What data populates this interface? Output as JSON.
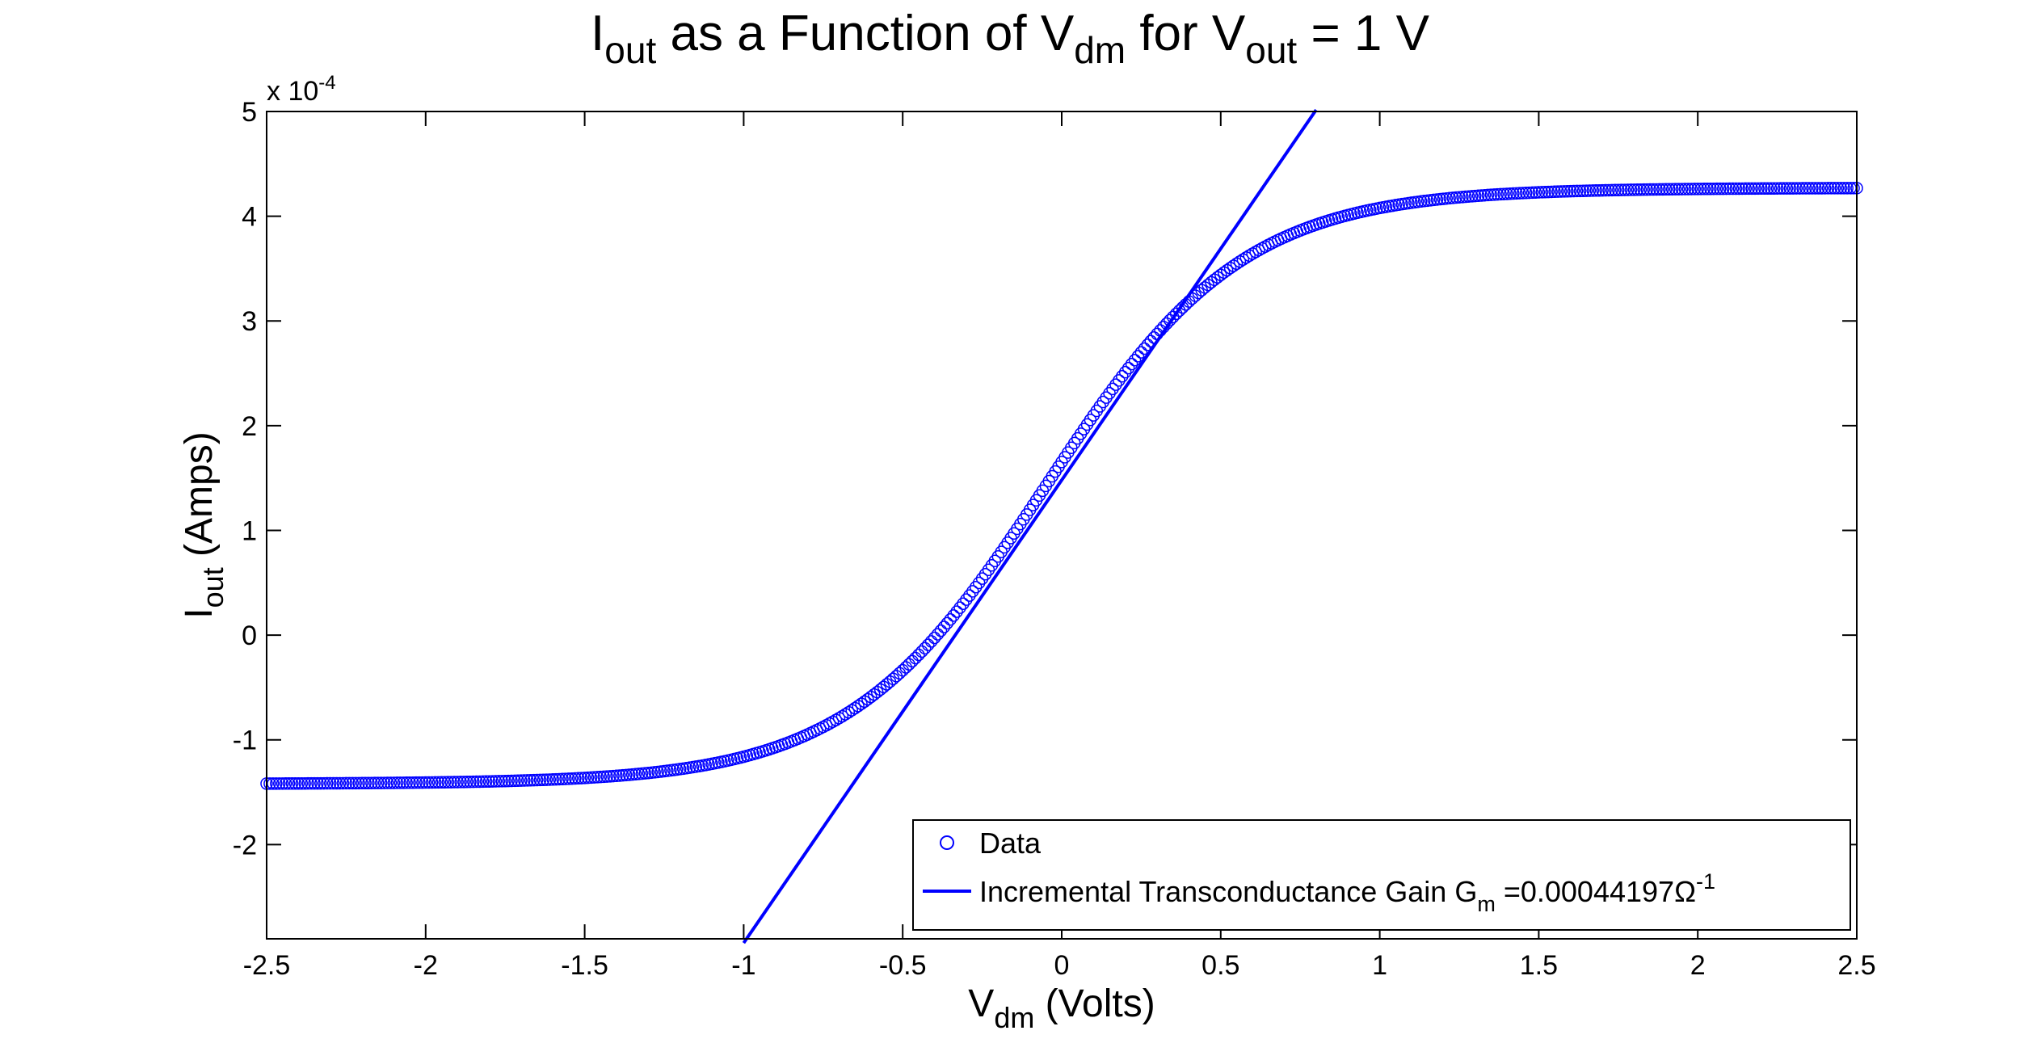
{
  "chart_data": {
    "type": "scatter",
    "title": {
      "base1": "I",
      "sub1": "out",
      "mid": " as a Function of V",
      "sub2": "dm",
      "mid2": " for V",
      "sub3": "out",
      "tail": " = 1 V"
    },
    "xlabel": {
      "base": "V",
      "sub": "dm",
      "rest": " (Volts)"
    },
    "ylabel": {
      "base": "I",
      "sub": "out",
      "rest": " (Amps)"
    },
    "y_exponent": {
      "prefix": "x 10",
      "power": "-4"
    },
    "xlim": [
      -2.5,
      2.5
    ],
    "ylim": [
      -2.9,
      5
    ],
    "x_ticks": [
      -2.5,
      -2,
      -1.5,
      -1,
      -0.5,
      0,
      0.5,
      1,
      1.5,
      2,
      2.5
    ],
    "x_tick_labels": [
      "-2.5",
      "-2",
      "-1.5",
      "-1",
      "-0.5",
      "0",
      "0.5",
      "1",
      "1.5",
      "2",
      "2.5"
    ],
    "y_ticks": [
      -2,
      -1,
      0,
      1,
      2,
      3,
      4,
      5
    ],
    "y_tick_labels": [
      "-2",
      "-1",
      "0",
      "1",
      "2",
      "3",
      "4",
      "5"
    ],
    "grid": false,
    "legend_position": "bottom-right",
    "series": [
      {
        "name": "Data",
        "kind": "markers",
        "marker": "circle",
        "color": "#0000ff",
        "x_start": -2.5,
        "x_end": 2.5,
        "x_step": 0.01,
        "model": {
          "offset": 1.42,
          "amplitude": 2.835,
          "center": -0.05,
          "width": 0.62,
          "drift": 0.02
        }
      },
      {
        "name": "Incremental Transconductance Gain G",
        "name_sub": "m",
        "name_tail": " =0.00044197",
        "name_unit": "Ω",
        "name_power": "-1",
        "kind": "line",
        "color": "#0000ff",
        "slope": 4.4197,
        "intercept": 1.48,
        "x": [
          -1.0,
          0.8
        ]
      }
    ]
  }
}
